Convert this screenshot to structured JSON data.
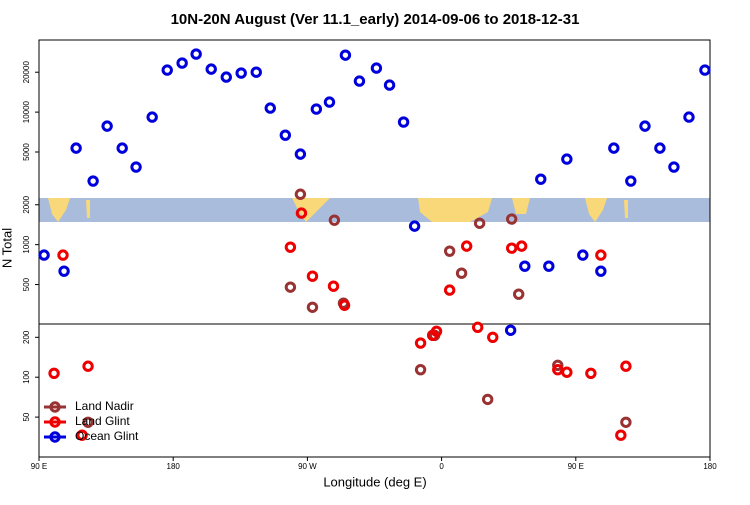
{
  "chart_data": {
    "type": "scatter",
    "title": "10N-20N August (Ver 11.1_early)   2014-09-06 to 2018-12-31",
    "x_label": "Longitude (deg E)",
    "y_label": "N Total",
    "log_y": true,
    "legend": "bottom-left",
    "xlim": [
      -270,
      180
    ],
    "xticks": [
      {
        "value": -270,
        "label": "90 E"
      },
      {
        "value": -180,
        "label": "180"
      },
      {
        "value": -90,
        "label": "90 W"
      },
      0,
      {
        "value": 90,
        "label": "90 E"
      },
      180
    ],
    "ylim": [
      25,
      35000
    ],
    "yticks": [
      50,
      100,
      200,
      500,
      1000,
      2000,
      5000,
      10000,
      20000
    ],
    "series": [
      {
        "name": "Land Nadir",
        "color": "#993333",
        "x": [
          -237.1,
          -101.4,
          -94.7,
          -86.6,
          -71.9,
          -65.8,
          -14.1,
          -4.7,
          5.4,
          13.4,
          25.5,
          30.9,
          47.0,
          51.7,
          77.9,
          123.6
        ],
        "values": [
          45.7,
          478,
          2400,
          337,
          1530,
          362,
          114,
          207,
          893,
          609,
          1450,
          68,
          1560,
          423,
          123,
          45.7
        ]
      },
      {
        "name": "Land Glint",
        "color": "#ee0000",
        "x": [
          -259.9,
          -253.9,
          -241.1,
          -237.1,
          -101.4,
          -94.0,
          -86.6,
          -72.5,
          -65.1,
          -14.1,
          -6.0,
          -3.4,
          5.4,
          16.8,
          24.2,
          34.3,
          47.0,
          53.7,
          77.9,
          84.0,
          100.1,
          106.8,
          120.2,
          123.6
        ],
        "values": [
          107,
          834,
          36.5,
          121,
          957,
          1730,
          578,
          486,
          349,
          181,
          207,
          222,
          454,
          975,
          238,
          200,
          941,
          975,
          114,
          109,
          107,
          834,
          36.5,
          121
        ]
      },
      {
        "name": "Ocean Glint",
        "color": "#0000dd",
        "x": [
          -266.6,
          -253.2,
          -245.1,
          -233.7,
          -224.3,
          -214.2,
          -204.9,
          -194.1,
          -184.0,
          -174.0,
          -164.6,
          -154.5,
          -144.4,
          -134.4,
          -124.3,
          -114.9,
          -104.8,
          -94.7,
          -84.0,
          -75.2,
          -64.5,
          -55.1,
          -43.7,
          -34.9,
          -25.5,
          -18.1,
          46.3,
          55.8,
          66.5,
          71.9,
          84.0,
          94.7,
          106.8,
          115.5,
          126.9,
          136.4,
          146.4,
          155.8,
          165.9,
          176.6
        ],
        "values": [
          834,
          631,
          5350,
          3020,
          7840,
          5350,
          3850,
          9170,
          20750,
          23440,
          27400,
          21100,
          18370,
          19700,
          20000,
          10720,
          6700,
          4820,
          10540,
          11900,
          26900,
          17140,
          21480,
          15990,
          8410,
          1380,
          226,
          688,
          3120,
          688,
          4420,
          834,
          631,
          5350,
          3020,
          7840,
          5350,
          3850,
          9170,
          20750
        ]
      }
    ]
  }
}
